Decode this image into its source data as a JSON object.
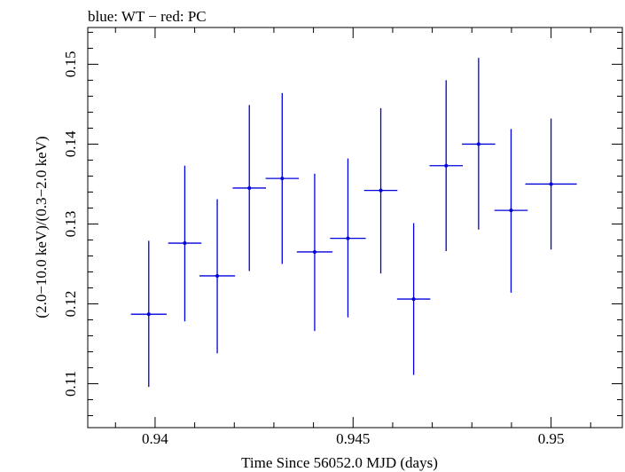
{
  "chart_data": {
    "type": "scatter",
    "title": "blue: WT − red: PC",
    "xlabel": "Time Since 56052.0 MJD (days)",
    "ylabel": "(2.0−10.0 keV)/(0.3−2.0 keV)",
    "xlim": [
      0.9383,
      0.9518
    ],
    "ylim": [
      0.1045,
      0.1546
    ],
    "x_ticks": [
      0.94,
      0.945,
      0.95
    ],
    "x_tick_labels": [
      "0.94",
      "0.945",
      "0.95"
    ],
    "y_ticks": [
      0.11,
      0.12,
      0.13,
      0.14,
      0.15
    ],
    "y_tick_labels": [
      "0.11",
      "0.12",
      "0.13",
      "0.14",
      "0.15"
    ],
    "grid": false,
    "series": [
      {
        "color": "#0000dd",
        "points": [
          {
            "x": 0.93984,
            "xerr": 0.00045,
            "y": 0.1187,
            "ylo": 0.1096,
            "yhi": 0.1279
          },
          {
            "x": 0.94075,
            "xerr": 0.00042,
            "y": 0.1276,
            "ylo": 0.1178,
            "yhi": 0.1373
          },
          {
            "x": 0.94157,
            "xerr": 0.00045,
            "y": 0.1235,
            "ylo": 0.1138,
            "yhi": 0.1331
          },
          {
            "x": 0.94238,
            "xerr": 0.00042,
            "y": 0.1345,
            "ylo": 0.1241,
            "yhi": 0.1449
          },
          {
            "x": 0.94321,
            "xerr": 0.00042,
            "y": 0.1357,
            "ylo": 0.125,
            "yhi": 0.1464
          },
          {
            "x": 0.94403,
            "xerr": 0.00045,
            "y": 0.1265,
            "ylo": 0.1166,
            "yhi": 0.1363
          },
          {
            "x": 0.94487,
            "xerr": 0.00045,
            "y": 0.1282,
            "ylo": 0.1183,
            "yhi": 0.1382
          },
          {
            "x": 0.9457,
            "xerr": 0.00042,
            "y": 0.1342,
            "ylo": 0.1238,
            "yhi": 0.1445
          },
          {
            "x": 0.94653,
            "xerr": 0.00042,
            "y": 0.1206,
            "ylo": 0.1111,
            "yhi": 0.1301
          },
          {
            "x": 0.94735,
            "xerr": 0.00042,
            "y": 0.1373,
            "ylo": 0.1266,
            "yhi": 0.148
          },
          {
            "x": 0.94817,
            "xerr": 0.00042,
            "y": 0.14,
            "ylo": 0.1293,
            "yhi": 0.1508
          },
          {
            "x": 0.94899,
            "xerr": 0.00042,
            "y": 0.1317,
            "ylo": 0.1214,
            "yhi": 0.1419
          },
          {
            "x": 0.95,
            "xerr": 0.00065,
            "y": 0.135,
            "ylo": 0.1268,
            "yhi": 0.1432
          }
        ]
      }
    ]
  }
}
